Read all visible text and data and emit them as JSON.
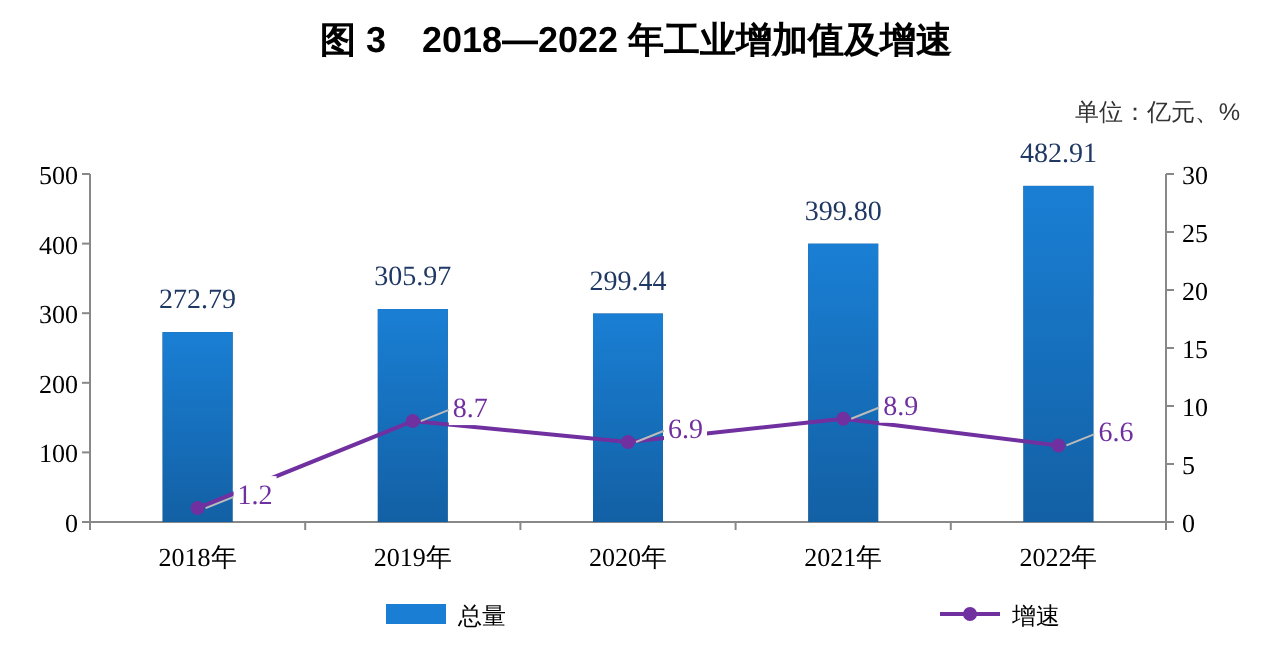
{
  "chart_data": {
    "type": "bar",
    "title": "图 3　2018—2022 年工业增加值及增速",
    "annotations": [
      "单位：亿元、%"
    ],
    "categories": [
      "2018年",
      "2019年",
      "2020年",
      "2021年",
      "2022年"
    ],
    "series": [
      {
        "name": "总量",
        "color": "#1a7fd4",
        "values": [
          272.79,
          305.97,
          299.44,
          399.8,
          482.91
        ],
        "value_labels": [
          "272.79",
          "305.97",
          "299.44",
          "399.80",
          "482.91"
        ]
      },
      {
        "name": "增速",
        "type": "line",
        "axis": "y2",
        "color": "#7030a0",
        "marker": "circle",
        "values": [
          1.2,
          8.7,
          6.9,
          8.9,
          6.6
        ],
        "value_labels": [
          "1.2",
          "8.7",
          "6.9",
          "8.9",
          "6.6"
        ]
      }
    ],
    "ylim": [
      0,
      500
    ],
    "yticks": [
      0,
      100,
      200,
      300,
      400,
      500
    ],
    "y2lim": [
      0,
      30
    ],
    "y2ticks": [
      0,
      5,
      10,
      15,
      20,
      25,
      30
    ],
    "grid": false,
    "legend": "bottom"
  }
}
